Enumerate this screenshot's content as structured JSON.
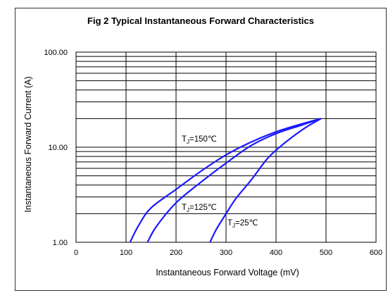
{
  "chart_data": {
    "type": "line",
    "title": "Fig 2 Typical Instantaneous Forward Characteristics",
    "xlabel": "Instantaneous Forward Voltage (mV)",
    "ylabel": "Instantaneous Forward Current (A)",
    "xlim": [
      0,
      600
    ],
    "ylim": [
      1,
      100
    ],
    "yscale": "log",
    "x_ticks": [
      "0",
      "100",
      "200",
      "300",
      "400",
      "500",
      "600"
    ],
    "y_ticks": [
      "1.00",
      "10.00",
      "100.00"
    ],
    "grid": true,
    "series": [
      {
        "name": "TJ=150℃",
        "label_main": "T",
        "label_sub": "J",
        "label_rest": "=150℃",
        "color": "#1a1aff",
        "points": [
          [
            108,
            1.0
          ],
          [
            125,
            1.5
          ],
          [
            150,
            2.3
          ],
          [
            200,
            3.6
          ],
          [
            250,
            5.6
          ],
          [
            300,
            8.3
          ],
          [
            350,
            11.3
          ],
          [
            400,
            14.5
          ],
          [
            450,
            17.5
          ],
          [
            490,
            20
          ]
        ]
      },
      {
        "name": "TJ=125℃",
        "label_main": "T",
        "label_sub": "J",
        "label_rest": "=125℃",
        "color": "#1a1aff",
        "points": [
          [
            143,
            1.0
          ],
          [
            160,
            1.45
          ],
          [
            200,
            2.6
          ],
          [
            250,
            4.3
          ],
          [
            300,
            6.8
          ],
          [
            350,
            10.4
          ],
          [
            400,
            13.9
          ],
          [
            450,
            17.0
          ],
          [
            490,
            20
          ]
        ]
      },
      {
        "name": "TJ=25℃",
        "label_main": "T",
        "label_sub": "J",
        "label_rest": "=25℃",
        "color": "#1a1aff",
        "points": [
          [
            268,
            1.0
          ],
          [
            280,
            1.35
          ],
          [
            300,
            2.0
          ],
          [
            320,
            2.9
          ],
          [
            350,
            4.5
          ],
          [
            380,
            7.3
          ],
          [
            400,
            9.3
          ],
          [
            430,
            12.5
          ],
          [
            460,
            16.2
          ],
          [
            490,
            20
          ]
        ]
      }
    ]
  }
}
